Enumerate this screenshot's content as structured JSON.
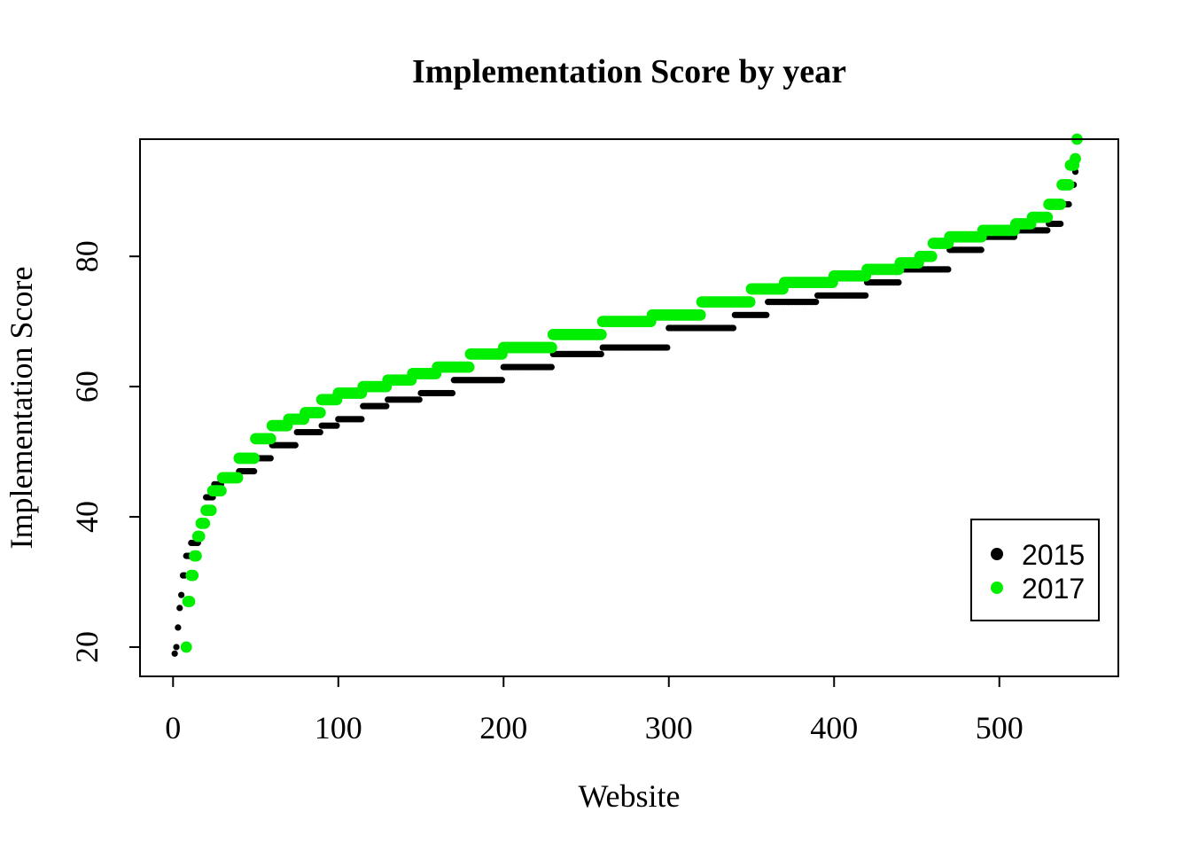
{
  "chart_data": {
    "type": "scatter",
    "title": "Implementation Score by year",
    "xlabel": "Website",
    "ylabel": "Implementation Score",
    "xlim": [
      -20,
      572
    ],
    "ylim": [
      15.5,
      98
    ],
    "x_ticks": [
      0,
      100,
      200,
      300,
      400,
      500
    ],
    "y_ticks": [
      20,
      40,
      60,
      80
    ],
    "grid": false,
    "legend_position": "bottom-right",
    "series": [
      {
        "name": "2015",
        "color": "#000000",
        "breakpoints": [
          [
            1,
            19
          ],
          [
            2,
            20
          ],
          [
            3,
            23
          ],
          [
            4,
            26
          ],
          [
            5,
            28
          ],
          [
            6,
            31
          ],
          [
            8,
            34
          ],
          [
            11,
            36
          ],
          [
            16,
            39
          ],
          [
            20,
            43
          ],
          [
            25,
            45
          ],
          [
            30,
            46
          ],
          [
            40,
            47
          ],
          [
            50,
            49
          ],
          [
            60,
            51
          ],
          [
            75,
            53
          ],
          [
            90,
            54
          ],
          [
            100,
            55
          ],
          [
            115,
            57
          ],
          [
            130,
            58
          ],
          [
            150,
            59
          ],
          [
            170,
            61
          ],
          [
            200,
            63
          ],
          [
            230,
            65
          ],
          [
            260,
            66
          ],
          [
            300,
            69
          ],
          [
            340,
            71
          ],
          [
            360,
            73
          ],
          [
            390,
            74
          ],
          [
            420,
            76
          ],
          [
            440,
            78
          ],
          [
            455,
            78
          ],
          [
            470,
            81
          ],
          [
            490,
            83
          ],
          [
            510,
            84
          ],
          [
            530,
            85
          ],
          [
            538,
            88
          ],
          [
            543,
            91
          ],
          [
            546,
            93
          ]
        ]
      },
      {
        "name": "2017",
        "color": "#00ee00",
        "breakpoints": [
          [
            8,
            20
          ],
          [
            9,
            27
          ],
          [
            11,
            31
          ],
          [
            13,
            34
          ],
          [
            15,
            37
          ],
          [
            17,
            39
          ],
          [
            20,
            41
          ],
          [
            24,
            44
          ],
          [
            30,
            46
          ],
          [
            40,
            49
          ],
          [
            50,
            52
          ],
          [
            60,
            54
          ],
          [
            70,
            55
          ],
          [
            80,
            56
          ],
          [
            90,
            58
          ],
          [
            100,
            59
          ],
          [
            115,
            60
          ],
          [
            130,
            61
          ],
          [
            145,
            62
          ],
          [
            160,
            63
          ],
          [
            180,
            65
          ],
          [
            200,
            66
          ],
          [
            230,
            68
          ],
          [
            260,
            70
          ],
          [
            290,
            71
          ],
          [
            320,
            73
          ],
          [
            350,
            75
          ],
          [
            370,
            76
          ],
          [
            400,
            77
          ],
          [
            420,
            78
          ],
          [
            440,
            79
          ],
          [
            452,
            80
          ],
          [
            460,
            82
          ],
          [
            470,
            83
          ],
          [
            490,
            84
          ],
          [
            510,
            85
          ],
          [
            520,
            86
          ],
          [
            530,
            88
          ],
          [
            538,
            91
          ],
          [
            543,
            94
          ],
          [
            546,
            95
          ],
          [
            547,
            98
          ]
        ]
      }
    ]
  }
}
